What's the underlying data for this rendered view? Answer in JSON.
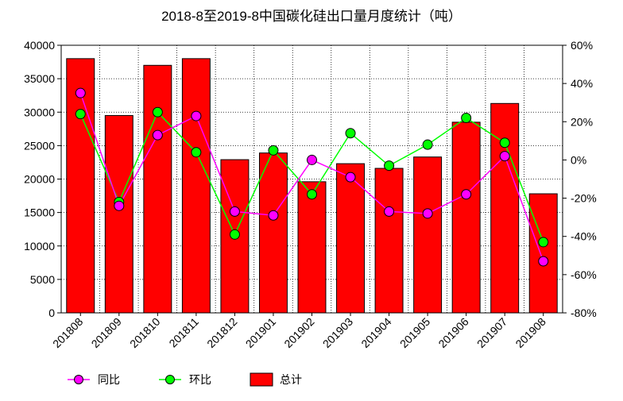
{
  "chart_data": {
    "type": "bar",
    "title": "2018-8至2019-8中国碳化硅出口量月度统计（吨）",
    "categories": [
      "201808",
      "201809",
      "201810",
      "201811",
      "201812",
      "201901",
      "201902",
      "201903",
      "201904",
      "201905",
      "201906",
      "201907",
      "201908"
    ],
    "y_left": {
      "ylim": [
        0,
        40000
      ],
      "ticks": [
        0,
        5000,
        10000,
        15000,
        20000,
        25000,
        30000,
        35000,
        40000
      ]
    },
    "y_right": {
      "ylim": [
        -80,
        60
      ],
      "ticks": [
        "60%",
        "40%",
        "20%",
        "0%",
        "-20%",
        "-40%",
        "-60%",
        "-80%"
      ]
    },
    "series": [
      {
        "name": "总计",
        "type": "bar",
        "axis": "left",
        "color": "#ff0000",
        "values": [
          38000,
          29500,
          37000,
          38000,
          22900,
          23900,
          19600,
          22300,
          21600,
          23300,
          28500,
          31300,
          17800
        ]
      },
      {
        "name": "同比",
        "type": "line",
        "axis": "right",
        "color": "#ff00ff",
        "values": [
          35,
          -24,
          13,
          23,
          -27,
          -29,
          0,
          -9,
          -27,
          -28,
          -18,
          2,
          -53
        ]
      },
      {
        "name": "环比",
        "type": "line",
        "axis": "right",
        "color": "#00ff00",
        "values": [
          24,
          -22,
          25,
          4,
          -39,
          5,
          -18,
          14,
          -3,
          8,
          22,
          9,
          -43
        ]
      }
    ],
    "grid": true,
    "legend_placement": "bottom-left"
  },
  "legend": {
    "yoy": "同比",
    "mom": "环比",
    "total": "总计"
  }
}
